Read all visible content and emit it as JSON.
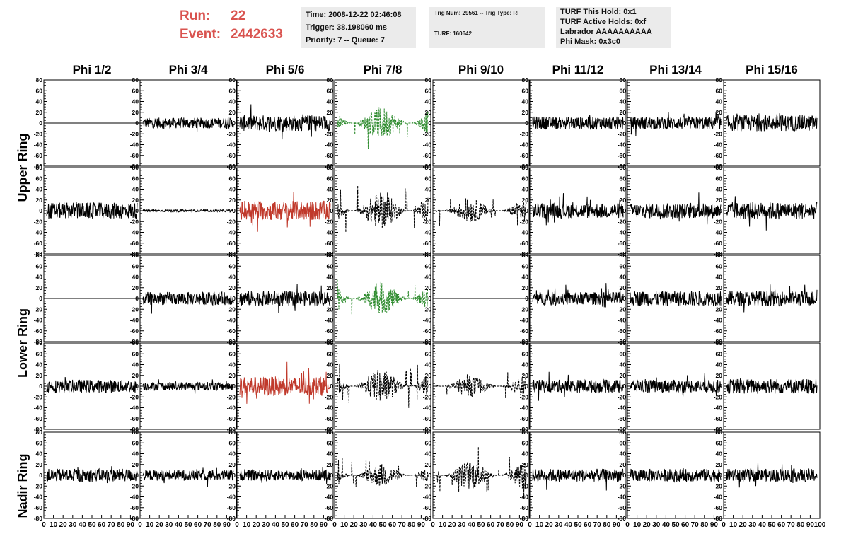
{
  "header": {
    "run_label": "Run:",
    "run_value": "22",
    "event_label": "Event:",
    "event_value": "2442633",
    "time": "Time: 2008-12-22 02:46:08",
    "trigger": "Trigger: 38.198060 ms",
    "priority": "Priority: 7 -- Queue: 7",
    "trig_num": "Trig Num: 29561 -- Trig Type: RF",
    "turf": "TURF: 160642",
    "turf_hold": "TURF This Hold: 0x1",
    "turf_active": "TURF Active Holds: 0xf",
    "labrador": "Labrador AAAAAAAAAA",
    "phi_mask": "Phi Mask: 0x3c0"
  },
  "colors": {
    "title": "#d9534f",
    "trace_default": "#000000",
    "trace_green": "#2e8b2e",
    "trace_red": "#c0392b"
  },
  "chart_data": {
    "type": "line",
    "columns": [
      "Phi 1/2",
      "Phi 3/4",
      "Phi 5/6",
      "Phi 7/8",
      "Phi 9/10",
      "Phi 11/12",
      "Phi 13/14",
      "Phi 15/16"
    ],
    "rows": [
      "Upper Ring",
      "Lower Ring",
      "Nadir Ring"
    ],
    "ylim": [
      -80,
      80
    ],
    "xlim": [
      0,
      100
    ],
    "yticks": [
      "80",
      "60",
      "40",
      "20",
      "0",
      "-20",
      "-40",
      "-60",
      "-80"
    ],
    "xticks": [
      "0",
      "10",
      "20",
      "30",
      "40",
      "50",
      "60",
      "70",
      "80",
      "90",
      "100"
    ],
    "panel_rows": [
      {
        "ring": "Upper Ring",
        "sub": 0,
        "styles": [
          "flat",
          "black",
          "black",
          "green-dashed",
          "flat",
          "black",
          "black",
          "black"
        ],
        "amplitudes": [
          0,
          10,
          15,
          25,
          0,
          12,
          12,
          15
        ]
      },
      {
        "ring": "Upper Ring",
        "sub": 1,
        "styles": [
          "black",
          "black",
          "red",
          "black-dashed",
          "black-dashed",
          "black",
          "black",
          "black"
        ],
        "amplitudes": [
          15,
          2,
          18,
          28,
          18,
          14,
          14,
          16
        ]
      },
      {
        "ring": "Lower Ring",
        "sub": 0,
        "styles": [
          "flat",
          "black",
          "black",
          "green-dashed",
          "flat",
          "black",
          "black",
          "black"
        ],
        "amplitudes": [
          0,
          12,
          14,
          24,
          0,
          12,
          14,
          14
        ]
      },
      {
        "ring": "Lower Ring",
        "sub": 1,
        "styles": [
          "black",
          "black",
          "red",
          "black-dashed",
          "black-dashed",
          "black",
          "black",
          "black"
        ],
        "amplitudes": [
          12,
          8,
          18,
          26,
          16,
          12,
          12,
          14
        ]
      },
      {
        "ring": "Nadir Ring",
        "sub": 0,
        "styles": [
          "black",
          "black",
          "black",
          "black-dashed",
          "black-dashed",
          "black",
          "black",
          "black"
        ],
        "amplitudes": [
          12,
          10,
          10,
          18,
          22,
          12,
          12,
          12
        ]
      }
    ]
  }
}
